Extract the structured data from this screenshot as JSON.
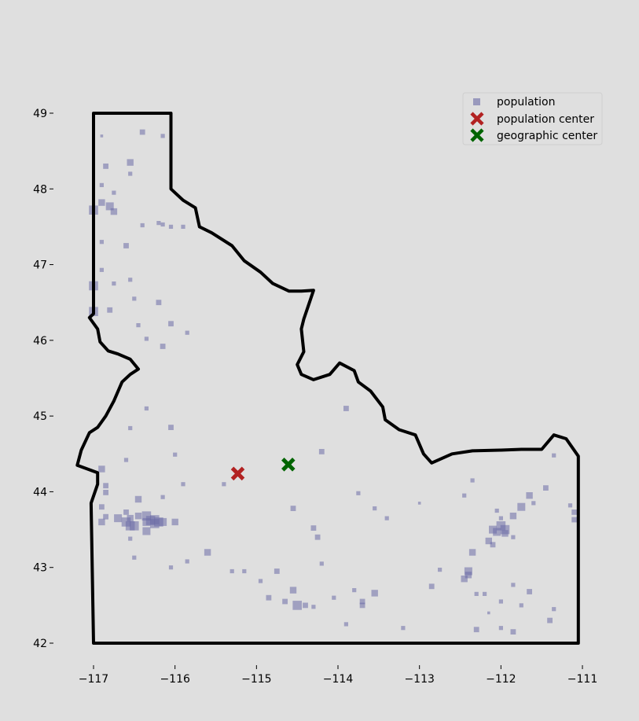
{
  "chart_data": {
    "type": "scatter",
    "title": "",
    "xlabel": "",
    "ylabel": "",
    "xlim": [
      -117.2,
      -110.75
    ],
    "ylim": [
      41.7,
      49.55
    ],
    "x_ticks": [
      {
        "value": -117,
        "label": "−117"
      },
      {
        "value": -116,
        "label": "−116"
      },
      {
        "value": -115,
        "label": "−115"
      },
      {
        "value": -114,
        "label": "−114"
      },
      {
        "value": -113,
        "label": "−113"
      },
      {
        "value": -112,
        "label": "−112"
      },
      {
        "value": -111,
        "label": "−111"
      }
    ],
    "y_ticks": [
      {
        "value": 42,
        "label": "42"
      },
      {
        "value": 43,
        "label": "43"
      },
      {
        "value": 44,
        "label": "44"
      },
      {
        "value": 45,
        "label": "45"
      },
      {
        "value": 46,
        "label": "46"
      },
      {
        "value": 47,
        "label": "47"
      },
      {
        "value": 48,
        "label": "48"
      },
      {
        "value": 49,
        "label": "49"
      }
    ],
    "grid": false,
    "legend_position": "top-right",
    "colors": {
      "background": "#dfdfdf",
      "population": "#6b6ba6",
      "population_center": "#b22222",
      "geographic_center": "#006400",
      "border": "#000000"
    },
    "boundary": [
      [
        -117.0,
        49.0
      ],
      [
        -116.05,
        49.0
      ],
      [
        -116.05,
        48.0
      ],
      [
        -115.9,
        47.85
      ],
      [
        -115.75,
        47.75
      ],
      [
        -115.7,
        47.5
      ],
      [
        -115.55,
        47.42
      ],
      [
        -115.3,
        47.25
      ],
      [
        -115.15,
        47.05
      ],
      [
        -114.95,
        46.9
      ],
      [
        -114.8,
        46.75
      ],
      [
        -114.6,
        46.65
      ],
      [
        -114.45,
        46.65
      ],
      [
        -114.3,
        46.66
      ],
      [
        -114.35,
        46.5
      ],
      [
        -114.42,
        46.28
      ],
      [
        -114.45,
        46.15
      ],
      [
        -114.42,
        45.85
      ],
      [
        -114.5,
        45.68
      ],
      [
        -114.45,
        45.55
      ],
      [
        -114.3,
        45.48
      ],
      [
        -114.1,
        45.55
      ],
      [
        -113.98,
        45.7
      ],
      [
        -113.8,
        45.6
      ],
      [
        -113.75,
        45.45
      ],
      [
        -113.6,
        45.33
      ],
      [
        -113.45,
        45.12
      ],
      [
        -113.42,
        44.95
      ],
      [
        -113.25,
        44.82
      ],
      [
        -113.05,
        44.75
      ],
      [
        -112.95,
        44.5
      ],
      [
        -112.85,
        44.38
      ],
      [
        -112.6,
        44.5
      ],
      [
        -112.35,
        44.54
      ],
      [
        -112.0,
        44.55
      ],
      [
        -111.75,
        44.56
      ],
      [
        -111.5,
        44.56
      ],
      [
        -111.35,
        44.75
      ],
      [
        -111.2,
        44.7
      ],
      [
        -111.05,
        44.47
      ],
      [
        -111.05,
        42.0
      ],
      [
        -117.0,
        42.0
      ],
      [
        -117.03,
        43.85
      ],
      [
        -116.95,
        44.1
      ],
      [
        -116.95,
        44.25
      ],
      [
        -117.2,
        44.35
      ],
      [
        -117.15,
        44.55
      ],
      [
        -117.05,
        44.78
      ],
      [
        -116.95,
        44.85
      ],
      [
        -116.85,
        45.0
      ],
      [
        -116.75,
        45.2
      ],
      [
        -116.65,
        45.45
      ],
      [
        -116.55,
        45.55
      ],
      [
        -116.45,
        45.62
      ],
      [
        -116.55,
        45.75
      ],
      [
        -116.7,
        45.82
      ],
      [
        -116.82,
        45.86
      ],
      [
        -116.92,
        45.98
      ],
      [
        -116.95,
        46.15
      ],
      [
        -117.05,
        46.3
      ],
      [
        -117.0,
        46.35
      ],
      [
        -117.0,
        49.0
      ]
    ],
    "population": [
      [
        -116.9,
        48.7,
        1
      ],
      [
        -116.85,
        48.3,
        3
      ],
      [
        -116.55,
        48.35,
        4
      ],
      [
        -116.4,
        48.75,
        3
      ],
      [
        -116.15,
        48.7,
        2
      ],
      [
        -116.9,
        48.05,
        2
      ],
      [
        -116.75,
        47.95,
        2
      ],
      [
        -116.9,
        47.82,
        4
      ],
      [
        -116.8,
        47.77,
        5
      ],
      [
        -116.75,
        47.7,
        4
      ],
      [
        -117.0,
        47.72,
        6
      ],
      [
        -116.55,
        48.2,
        2
      ],
      [
        -116.6,
        47.25,
        3
      ],
      [
        -116.4,
        47.52,
        2
      ],
      [
        -116.2,
        47.55,
        2
      ],
      [
        -116.15,
        47.53,
        2
      ],
      [
        -116.05,
        47.5,
        2
      ],
      [
        -115.9,
        47.5,
        2
      ],
      [
        -116.9,
        47.3,
        2
      ],
      [
        -116.9,
        46.93,
        2
      ],
      [
        -117.0,
        46.72,
        6
      ],
      [
        -116.75,
        46.75,
        2
      ],
      [
        -116.55,
        46.8,
        2
      ],
      [
        -116.5,
        46.55,
        2
      ],
      [
        -116.2,
        46.5,
        3
      ],
      [
        -117.0,
        46.38,
        6
      ],
      [
        -116.8,
        46.4,
        3
      ],
      [
        -116.45,
        46.2,
        2
      ],
      [
        -116.35,
        46.02,
        2
      ],
      [
        -116.15,
        45.92,
        3
      ],
      [
        -115.85,
        46.1,
        2
      ],
      [
        -116.05,
        46.22,
        3
      ],
      [
        -116.35,
        45.1,
        2
      ],
      [
        -116.55,
        44.84,
        2
      ],
      [
        -116.05,
        44.85,
        3
      ],
      [
        -116.0,
        44.49,
        2
      ],
      [
        -116.6,
        44.42,
        2
      ],
      [
        -116.9,
        44.3,
        4
      ],
      [
        -116.85,
        44.08,
        3
      ],
      [
        -116.85,
        43.99,
        3
      ],
      [
        -116.6,
        43.73,
        3
      ],
      [
        -116.9,
        43.8,
        3
      ],
      [
        -116.9,
        43.6,
        4
      ],
      [
        -116.85,
        43.67,
        3
      ],
      [
        -116.7,
        43.65,
        5
      ],
      [
        -116.6,
        43.6,
        6
      ],
      [
        -116.55,
        43.55,
        6
      ],
      [
        -116.55,
        43.65,
        4
      ],
      [
        -116.45,
        43.9,
        4
      ],
      [
        -116.45,
        43.68,
        4
      ],
      [
        -116.35,
        43.68,
        6
      ],
      [
        -116.35,
        43.6,
        5
      ],
      [
        -116.3,
        43.62,
        6
      ],
      [
        -116.25,
        43.63,
        6
      ],
      [
        -116.25,
        43.58,
        6
      ],
      [
        -116.2,
        43.6,
        6
      ],
      [
        -116.15,
        43.6,
        5
      ],
      [
        -116.35,
        43.48,
        5
      ],
      [
        -116.5,
        43.55,
        6
      ],
      [
        -116.0,
        43.6,
        4
      ],
      [
        -116.55,
        43.38,
        2
      ],
      [
        -116.05,
        43.0,
        2
      ],
      [
        -115.85,
        43.08,
        2
      ],
      [
        -115.6,
        43.2,
        4
      ],
      [
        -115.9,
        44.1,
        2
      ],
      [
        -116.15,
        43.93,
        2
      ],
      [
        -115.4,
        44.1,
        2
      ],
      [
        -115.3,
        42.95,
        2
      ],
      [
        -115.15,
        42.95,
        2
      ],
      [
        -114.95,
        42.82,
        2
      ],
      [
        -114.75,
        42.95,
        3
      ],
      [
        -114.85,
        42.6,
        3
      ],
      [
        -114.65,
        42.55,
        3
      ],
      [
        -114.55,
        42.7,
        4
      ],
      [
        -114.5,
        42.5,
        6
      ],
      [
        -114.4,
        42.5,
        3
      ],
      [
        -114.3,
        42.48,
        2
      ],
      [
        -114.2,
        43.05,
        2
      ],
      [
        -114.25,
        43.4,
        3
      ],
      [
        -114.3,
        43.52,
        3
      ],
      [
        -114.55,
        43.78,
        3
      ],
      [
        -114.2,
        44.53,
        3
      ],
      [
        -113.9,
        45.1,
        3
      ],
      [
        -113.75,
        43.98,
        2
      ],
      [
        -113.55,
        43.78,
        2
      ],
      [
        -113.4,
        43.65,
        2
      ],
      [
        -113.0,
        43.85,
        1
      ],
      [
        -113.8,
        42.7,
        2
      ],
      [
        -113.7,
        42.55,
        3
      ],
      [
        -113.7,
        42.5,
        3
      ],
      [
        -113.55,
        42.66,
        4
      ],
      [
        -113.2,
        42.2,
        2
      ],
      [
        -113.9,
        42.25,
        2
      ],
      [
        -114.05,
        42.6,
        2
      ],
      [
        -112.85,
        42.75,
        3
      ],
      [
        -112.75,
        42.97,
        2
      ],
      [
        -112.45,
        42.85,
        4
      ],
      [
        -112.4,
        42.9,
        4
      ],
      [
        -112.4,
        42.95,
        5
      ],
      [
        -112.35,
        43.2,
        4
      ],
      [
        -112.45,
        43.95,
        2
      ],
      [
        -112.35,
        44.15,
        2
      ],
      [
        -112.15,
        42.4,
        1
      ],
      [
        -112.3,
        42.65,
        2
      ],
      [
        -112.2,
        42.65,
        2
      ],
      [
        -112.3,
        42.18,
        3
      ],
      [
        -112.1,
        43.3,
        3
      ],
      [
        -112.15,
        43.35,
        4
      ],
      [
        -112.1,
        43.5,
        5
      ],
      [
        -112.05,
        43.47,
        5
      ],
      [
        -112.0,
        43.55,
        6
      ],
      [
        -111.95,
        43.5,
        6
      ],
      [
        -111.95,
        43.45,
        4
      ],
      [
        -111.85,
        43.68,
        4
      ],
      [
        -111.85,
        43.4,
        2
      ],
      [
        -111.75,
        43.8,
        5
      ],
      [
        -111.65,
        43.95,
        4
      ],
      [
        -112.05,
        43.75,
        2
      ],
      [
        -112.0,
        43.65,
        2
      ],
      [
        -112.0,
        42.55,
        2
      ],
      [
        -111.85,
        42.77,
        2
      ],
      [
        -111.75,
        42.5,
        2
      ],
      [
        -111.85,
        42.15,
        3
      ],
      [
        -111.65,
        42.68,
        3
      ],
      [
        -111.45,
        44.05,
        3
      ],
      [
        -111.35,
        44.48,
        2
      ],
      [
        -111.15,
        43.82,
        2
      ],
      [
        -111.1,
        43.73,
        3
      ],
      [
        -111.1,
        43.63,
        3
      ],
      [
        -111.4,
        42.3,
        3
      ],
      [
        -111.35,
        42.45,
        2
      ],
      [
        -112.0,
        42.2,
        2
      ],
      [
        -111.6,
        43.85,
        2
      ],
      [
        -116.5,
        43.13,
        2
      ]
    ],
    "population_center": {
      "x": -115.23,
      "y": 44.24
    },
    "geographic_center": {
      "x": -114.61,
      "y": 44.36
    },
    "legend": [
      {
        "label": "population",
        "marker": "square",
        "color": "#6b6ba6"
      },
      {
        "label": "population center",
        "marker": "x",
        "color": "#b22222"
      },
      {
        "label": "geographic center",
        "marker": "x",
        "color": "#006400"
      }
    ]
  }
}
